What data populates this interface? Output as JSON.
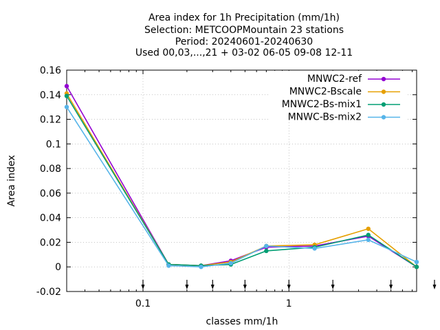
{
  "chart_data": {
    "type": "line",
    "title_lines": [
      "Area index  for 1h Precipitation (mm/1h)",
      "Selection: METCOOPMountain     23 stations",
      "Period: 20240601-20240630",
      "Used 00,03,...,21 + 03-02 06-05 09-08 12-11"
    ],
    "xlabel": "classes mm/1h",
    "ylabel": "Area index",
    "x_scale": "log",
    "xlim": [
      0.03,
      7.5
    ],
    "ylim": [
      -0.02,
      0.16
    ],
    "yticks": [
      "-0.02",
      "0",
      "0.02",
      "0.04",
      "0.06",
      "0.08",
      "0.1",
      "0.12",
      "0.14",
      "0.16"
    ],
    "xticks": [
      "0.1",
      "1"
    ],
    "class_markers_x": [
      0.1,
      0.2,
      0.3,
      0.5,
      1,
      2,
      5,
      10
    ],
    "grid": true,
    "legend_position": "top-right",
    "x": [
      0.03,
      0.15,
      0.25,
      0.4,
      0.7,
      1.5,
      3.5,
      7.5
    ],
    "series": [
      {
        "name": "MNWC2-ref",
        "color": "#9400d3",
        "values": [
          0.147,
          0.002,
          0.001,
          0.005,
          0.016,
          0.017,
          0.025,
          0.0
        ]
      },
      {
        "name": "MNWC2-Bscale",
        "color": "#e69f00",
        "values": [
          0.141,
          0.002,
          0.001,
          0.004,
          0.017,
          0.018,
          0.031,
          0.0
        ]
      },
      {
        "name": "MNWC2-Bs-mix1",
        "color": "#009e73",
        "values": [
          0.139,
          0.002,
          0.001,
          0.002,
          0.013,
          0.016,
          0.026,
          0.0
        ]
      },
      {
        "name": "MNWC-Bs-mix2",
        "color": "#56b4e9",
        "values": [
          0.13,
          0.001,
          0.0,
          0.003,
          0.017,
          0.015,
          0.022,
          0.004
        ]
      }
    ]
  }
}
